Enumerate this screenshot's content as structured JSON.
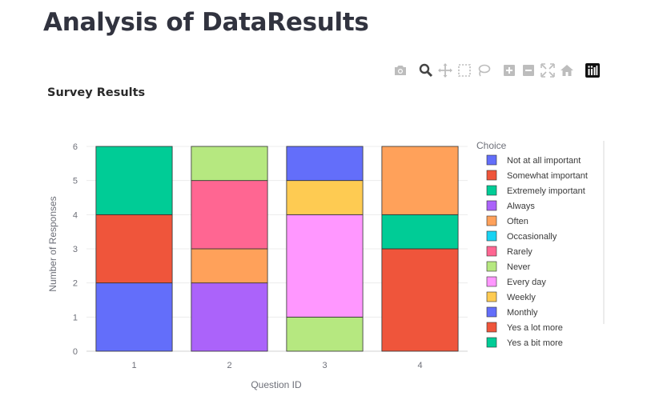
{
  "page": {
    "title": "Analysis of DataResults"
  },
  "modebar": {
    "buttons": [
      "camera-icon",
      "zoom-icon",
      "pan-icon",
      "box-select-icon",
      "lasso-select-icon",
      "zoom-in-icon",
      "zoom-out-icon",
      "autoscale-icon",
      "reset-axes-icon",
      "plotly-logo-icon"
    ]
  },
  "chart_data": {
    "type": "bar",
    "barmode": "stack",
    "title": "Survey Results",
    "xlabel": "Question ID",
    "ylabel": "Number of Responses",
    "categories": [
      "1",
      "2",
      "3",
      "4"
    ],
    "ylim": [
      0,
      6
    ],
    "yticks": [
      0,
      1,
      2,
      3,
      4,
      5,
      6
    ],
    "legend_title": "Choice",
    "legend_position": "right",
    "series": [
      {
        "name": "Not at all important",
        "color": "#636efa",
        "values": [
          2,
          0,
          0,
          0
        ]
      },
      {
        "name": "Somewhat important",
        "color": "#ef553b",
        "values": [
          2,
          0,
          0,
          0
        ]
      },
      {
        "name": "Extremely important",
        "color": "#00cc96",
        "values": [
          2,
          0,
          0,
          0
        ]
      },
      {
        "name": "Always",
        "color": "#ab63fa",
        "values": [
          0,
          2,
          0,
          0
        ]
      },
      {
        "name": "Often",
        "color": "#ffa15a",
        "values": [
          0,
          1,
          0,
          2
        ]
      },
      {
        "name": "Occasionally",
        "color": "#19d3f3",
        "values": [
          0,
          0,
          0,
          0
        ]
      },
      {
        "name": "Rarely",
        "color": "#ff6692",
        "values": [
          0,
          2,
          0,
          0
        ]
      },
      {
        "name": "Never",
        "color": "#b6e880",
        "values": [
          0,
          1,
          1,
          0
        ]
      },
      {
        "name": "Every day",
        "color": "#ff97ff",
        "values": [
          0,
          0,
          3,
          0
        ]
      },
      {
        "name": "Weekly",
        "color": "#fecb52",
        "values": [
          0,
          0,
          1,
          0
        ]
      },
      {
        "name": "Monthly",
        "color": "#636efa",
        "values": [
          0,
          0,
          1,
          0
        ]
      },
      {
        "name": "Yes a lot more",
        "color": "#ef553b",
        "values": [
          0,
          0,
          0,
          3
        ]
      },
      {
        "name": "Yes a bit more",
        "color": "#00cc96",
        "values": [
          0,
          0,
          0,
          1
        ]
      }
    ],
    "stack_order": [
      [
        "Not at all important",
        "Somewhat important",
        "Extremely important"
      ],
      [
        "Always",
        "Often",
        "Rarely",
        "Never"
      ],
      [
        "Never",
        "Every day",
        "Weekly",
        "Monthly"
      ],
      [
        "Yes a lot more",
        "Yes a bit more",
        "Often"
      ]
    ]
  }
}
